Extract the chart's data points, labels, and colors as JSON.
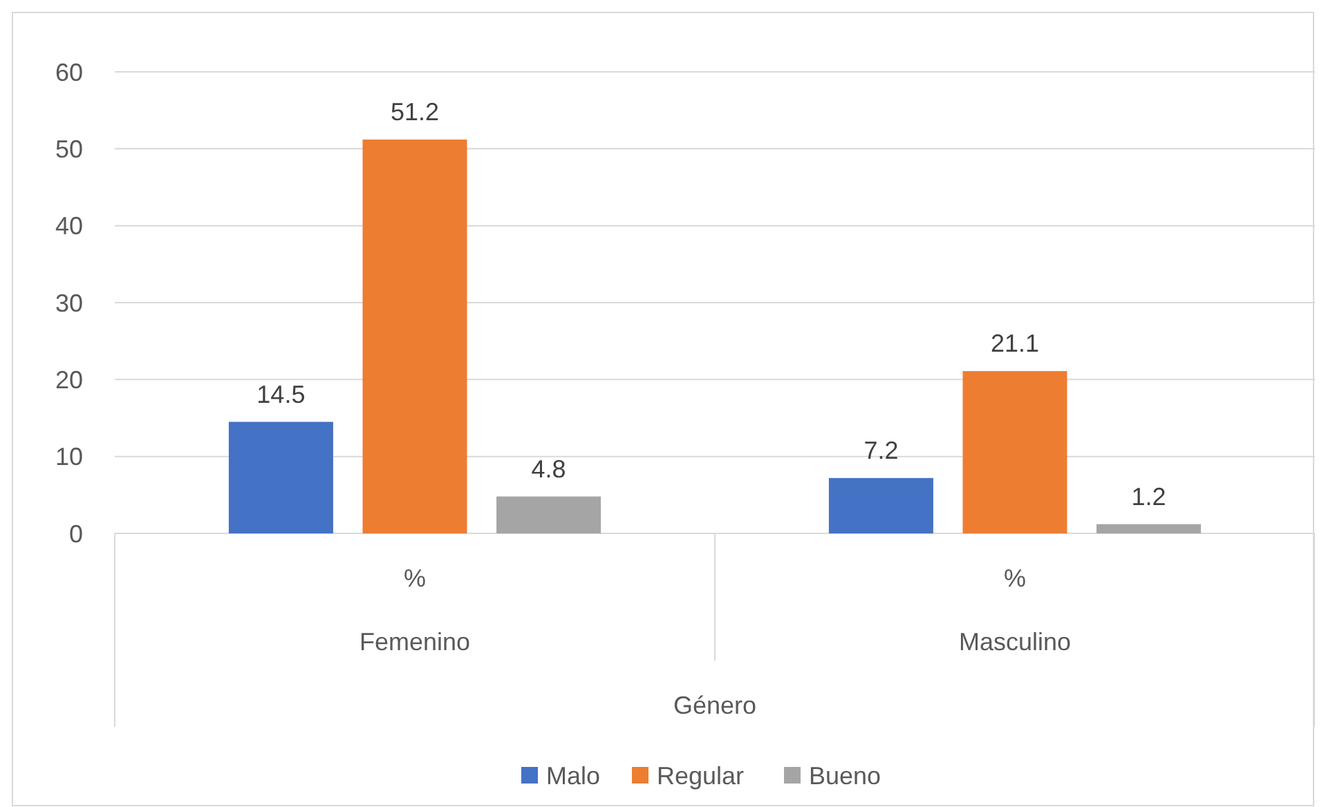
{
  "chart_data": {
    "type": "bar",
    "categories": [
      "Femenino",
      "Masculino"
    ],
    "xlabel": "Género",
    "series": [
      {
        "name": "Malo",
        "color": "#4472c4",
        "values": [
          14.5,
          7.2
        ]
      },
      {
        "name": "Regular",
        "color": "#ed7d31",
        "values": [
          51.2,
          21.1
        ]
      },
      {
        "name": "Bueno",
        "color": "#a5a5a5",
        "values": [
          4.8,
          1.2
        ]
      }
    ],
    "annotations": [
      "%",
      "%"
    ],
    "ylim": [
      0,
      60
    ],
    "yticks": [
      0,
      10,
      20,
      30,
      40,
      50,
      60
    ],
    "grid": "y",
    "data_labels": true,
    "legend": "bottom"
  }
}
